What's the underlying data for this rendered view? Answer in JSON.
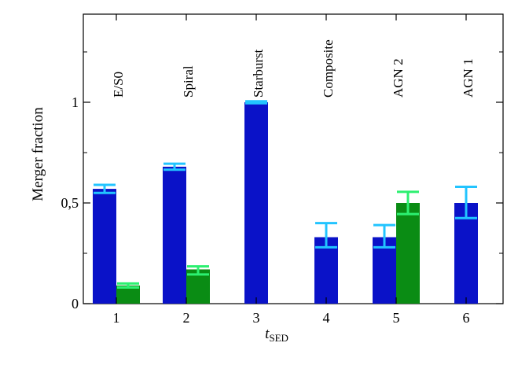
{
  "chart_data": {
    "type": "bar",
    "x_categories": [
      "1",
      "2",
      "3",
      "4",
      "5",
      "6"
    ],
    "category_labels": [
      "E/S0",
      "Spiral",
      "Starburst",
      "Composite",
      "AGN 2",
      "AGN 1"
    ],
    "xlabel_main": "t",
    "xlabel_sub": "SED",
    "ylabel": "Merger fraction",
    "y_ticks": [
      {
        "value": 0,
        "label": "0"
      },
      {
        "value": 0.5,
        "label": "0,5"
      },
      {
        "value": 1,
        "label": "1"
      }
    ],
    "ylim": [
      0,
      1.42
    ],
    "series": [
      {
        "color": "#0a12c8",
        "error_color": "#22c4ff",
        "values": [
          0.57,
          0.68,
          1.0,
          0.33,
          0.33,
          0.5
        ],
        "err_low": [
          0.55,
          0.665,
          0.995,
          0.28,
          0.28,
          0.425
        ],
        "err_high": [
          0.59,
          0.695,
          1.005,
          0.4,
          0.39,
          0.58
        ]
      },
      {
        "color": "#0a8c14",
        "error_color": "#2cf070",
        "values": [
          0.09,
          0.17,
          null,
          null,
          0.5,
          null
        ],
        "err_low": [
          0.08,
          0.145,
          null,
          null,
          0.445,
          null
        ],
        "err_high": [
          0.1,
          0.185,
          null,
          null,
          0.555,
          null
        ]
      }
    ],
    "grid": false,
    "legend": "none"
  }
}
